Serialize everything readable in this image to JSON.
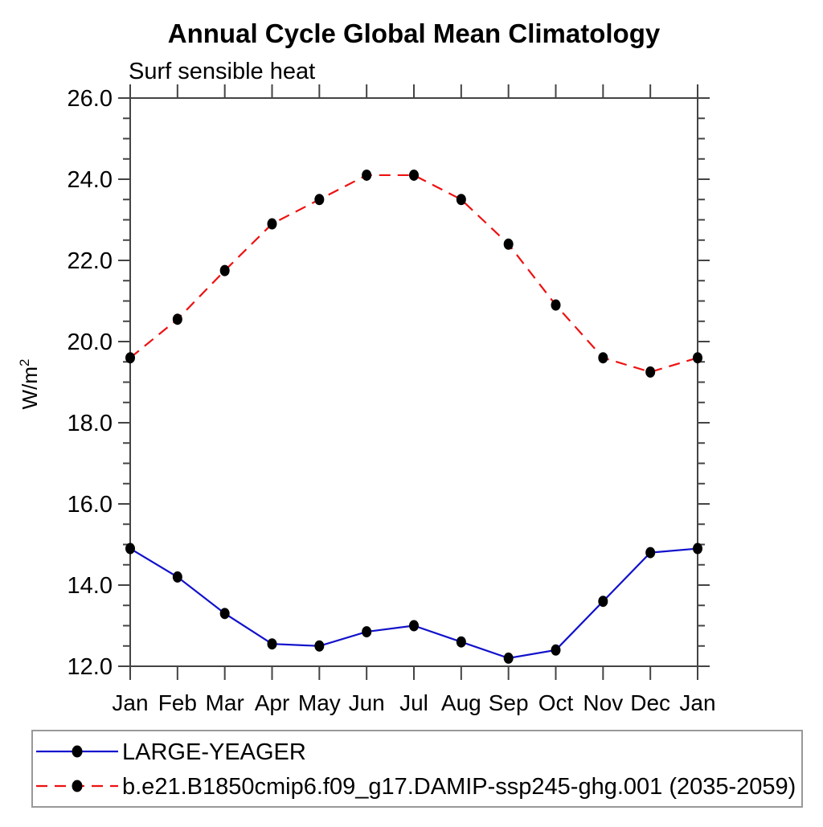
{
  "page": {
    "background": "#ffffff"
  },
  "chart_data": {
    "type": "line",
    "title": "Annual Cycle Global Mean Climatology",
    "subtitle": "Surf sensible heat",
    "ylabel": {
      "base": "W/m",
      "exponent": "2"
    },
    "x_categories": [
      "Jan",
      "Feb",
      "Mar",
      "Apr",
      "May",
      "Jun",
      "Jul",
      "Aug",
      "Sep",
      "Oct",
      "Nov",
      "Dec",
      "Jan"
    ],
    "series": [
      {
        "name": "LARGE-YEAGER",
        "line_style": "solid",
        "color": "#1111cc",
        "marker": "filled-circle",
        "marker_color": "#000000",
        "values": [
          14.9,
          14.2,
          13.3,
          12.55,
          12.5,
          12.85,
          13.0,
          12.6,
          12.2,
          12.4,
          13.6,
          14.8,
          14.9
        ]
      },
      {
        "name": "b.e21.B1850cmip6.f09_g17.DAMIP-ssp245-ghg.001 (2035-2059)",
        "line_style": "dashed",
        "color": "#ee1111",
        "marker": "filled-circle",
        "marker_color": "#000000",
        "values": [
          19.6,
          20.55,
          21.75,
          22.9,
          23.5,
          24.1,
          24.1,
          23.5,
          22.4,
          20.9,
          19.6,
          19.25,
          19.6
        ]
      }
    ],
    "ylim": [
      12.0,
      26.0
    ],
    "y_major_step": 2.0,
    "y_minor_step": 0.5,
    "y_tick_labels": [
      "12.0",
      "14.0",
      "16.0",
      "18.0",
      "20.0",
      "22.0",
      "24.0",
      "26.0"
    ],
    "grid": false,
    "legend_position": "bottom",
    "colors": {
      "axis": "#444444",
      "legend_border": "#999999",
      "text": "#000000",
      "background": "#ffffff"
    }
  }
}
